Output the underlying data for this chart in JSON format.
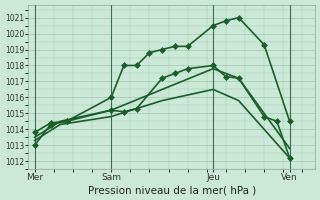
{
  "background_color": "#cce8d8",
  "grid_color": "#a0c8b0",
  "line_color": "#1a5e28",
  "marker_color": "#1a5e28",
  "ylabel_tick_values": [
    1012,
    1013,
    1014,
    1015,
    1016,
    1017,
    1018,
    1019,
    1020,
    1021
  ],
  "ylim": [
    1011.5,
    1021.8
  ],
  "xlabel": "Pression niveau de la mer( hPa )",
  "xtick_labels": [
    "Mer",
    "Sam",
    "Jeu",
    "Ven"
  ],
  "xtick_positions": [
    0,
    24,
    56,
    80
  ],
  "xlim": [
    -2,
    88
  ],
  "series": [
    {
      "x": [
        0,
        5,
        10,
        24,
        28,
        32,
        36,
        40,
        44,
        48,
        56,
        60,
        64,
        72,
        80
      ],
      "y": [
        1013.8,
        1014.4,
        1014.5,
        1016.0,
        1018.0,
        1018.0,
        1018.8,
        1019.0,
        1019.2,
        1019.2,
        1020.5,
        1020.8,
        1021.0,
        1019.3,
        1014.5
      ],
      "has_markers": true,
      "linewidth": 1.2,
      "markersize": 3.0
    },
    {
      "x": [
        0,
        5,
        10,
        24,
        28,
        32,
        40,
        44,
        48,
        56,
        60,
        64,
        72,
        76,
        80
      ],
      "y": [
        1013.0,
        1014.3,
        1014.5,
        1015.2,
        1015.1,
        1015.3,
        1017.2,
        1017.5,
        1017.8,
        1018.0,
        1017.3,
        1017.2,
        1014.8,
        1014.5,
        1012.2
      ],
      "has_markers": true,
      "linewidth": 1.2,
      "markersize": 3.0
    },
    {
      "x": [
        0,
        8,
        24,
        40,
        56,
        64,
        72,
        80
      ],
      "y": [
        1013.5,
        1014.5,
        1015.2,
        1016.5,
        1017.8,
        1017.2,
        1015.0,
        1012.8
      ],
      "has_markers": false,
      "linewidth": 1.2,
      "markersize": 0
    },
    {
      "x": [
        0,
        8,
        24,
        40,
        56,
        64,
        72,
        80
      ],
      "y": [
        1013.3,
        1014.3,
        1014.8,
        1015.8,
        1016.5,
        1015.8,
        1014.0,
        1012.2
      ],
      "has_markers": false,
      "linewidth": 1.2,
      "markersize": 0
    }
  ],
  "vlines": [
    0,
    24,
    56,
    80
  ],
  "vline_color": "#3a7050"
}
